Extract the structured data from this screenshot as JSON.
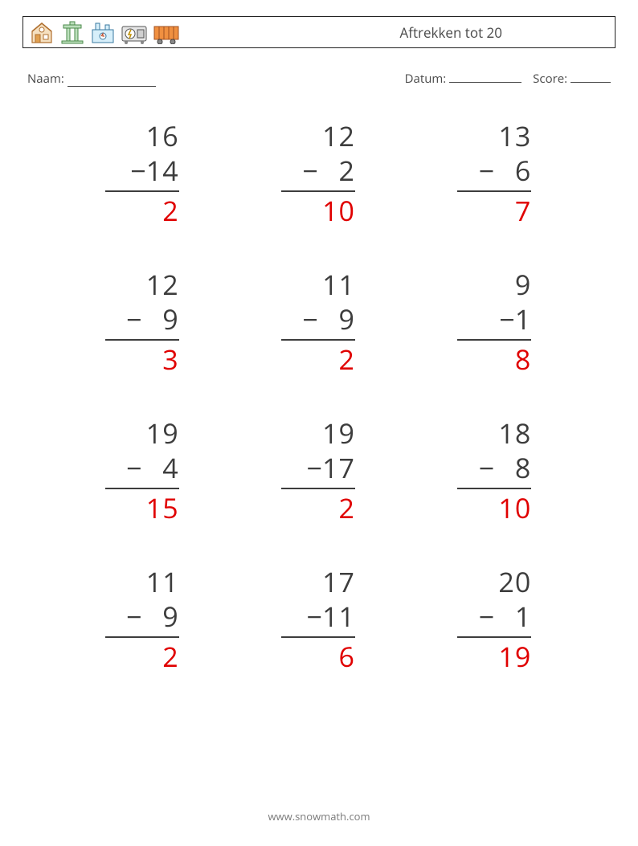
{
  "header": {
    "title": "Aftrekken tot 20",
    "icons": [
      {
        "name": "barn-icon",
        "stroke": "#b08030",
        "fill": "#f0c080"
      },
      {
        "name": "silo-icon",
        "stroke": "#5a8a5a",
        "fill": "#bde0bd"
      },
      {
        "name": "factory-icon",
        "stroke": "#3a7aa0",
        "fill": "#bfe2f2"
      },
      {
        "name": "generator-icon",
        "stroke": "#555",
        "fill": "#ccc"
      },
      {
        "name": "wagon-icon",
        "stroke": "#c06020",
        "fill": "#f09040"
      }
    ]
  },
  "labels": {
    "name": "Naam:",
    "date": "Datum:",
    "score": "Score:"
  },
  "problems": [
    {
      "a": "16",
      "b": "14",
      "tight": true,
      "ans": "2"
    },
    {
      "a": "12",
      "b": "2",
      "tight": false,
      "ans": "10"
    },
    {
      "a": "13",
      "b": "6",
      "tight": false,
      "ans": "7"
    },
    {
      "a": "12",
      "b": "9",
      "tight": false,
      "ans": "3"
    },
    {
      "a": "11",
      "b": "9",
      "tight": false,
      "ans": "2"
    },
    {
      "a": "9",
      "b": "1",
      "tight": true,
      "ans": "8"
    },
    {
      "a": "19",
      "b": "4",
      "tight": false,
      "ans": "15"
    },
    {
      "a": "19",
      "b": "17",
      "tight": true,
      "ans": "2"
    },
    {
      "a": "18",
      "b": "8",
      "tight": false,
      "ans": "10"
    },
    {
      "a": "11",
      "b": "9",
      "tight": false,
      "ans": "2"
    },
    {
      "a": "17",
      "b": "11",
      "tight": true,
      "ans": "6"
    },
    {
      "a": "20",
      "b": "1",
      "tight": false,
      "ans": "19"
    }
  ],
  "footer": {
    "url": "www.snowmath.com"
  },
  "colors": {
    "text": "#3d3d3d",
    "answer": "#e00000",
    "border": "#222222",
    "background": "#ffffff"
  }
}
